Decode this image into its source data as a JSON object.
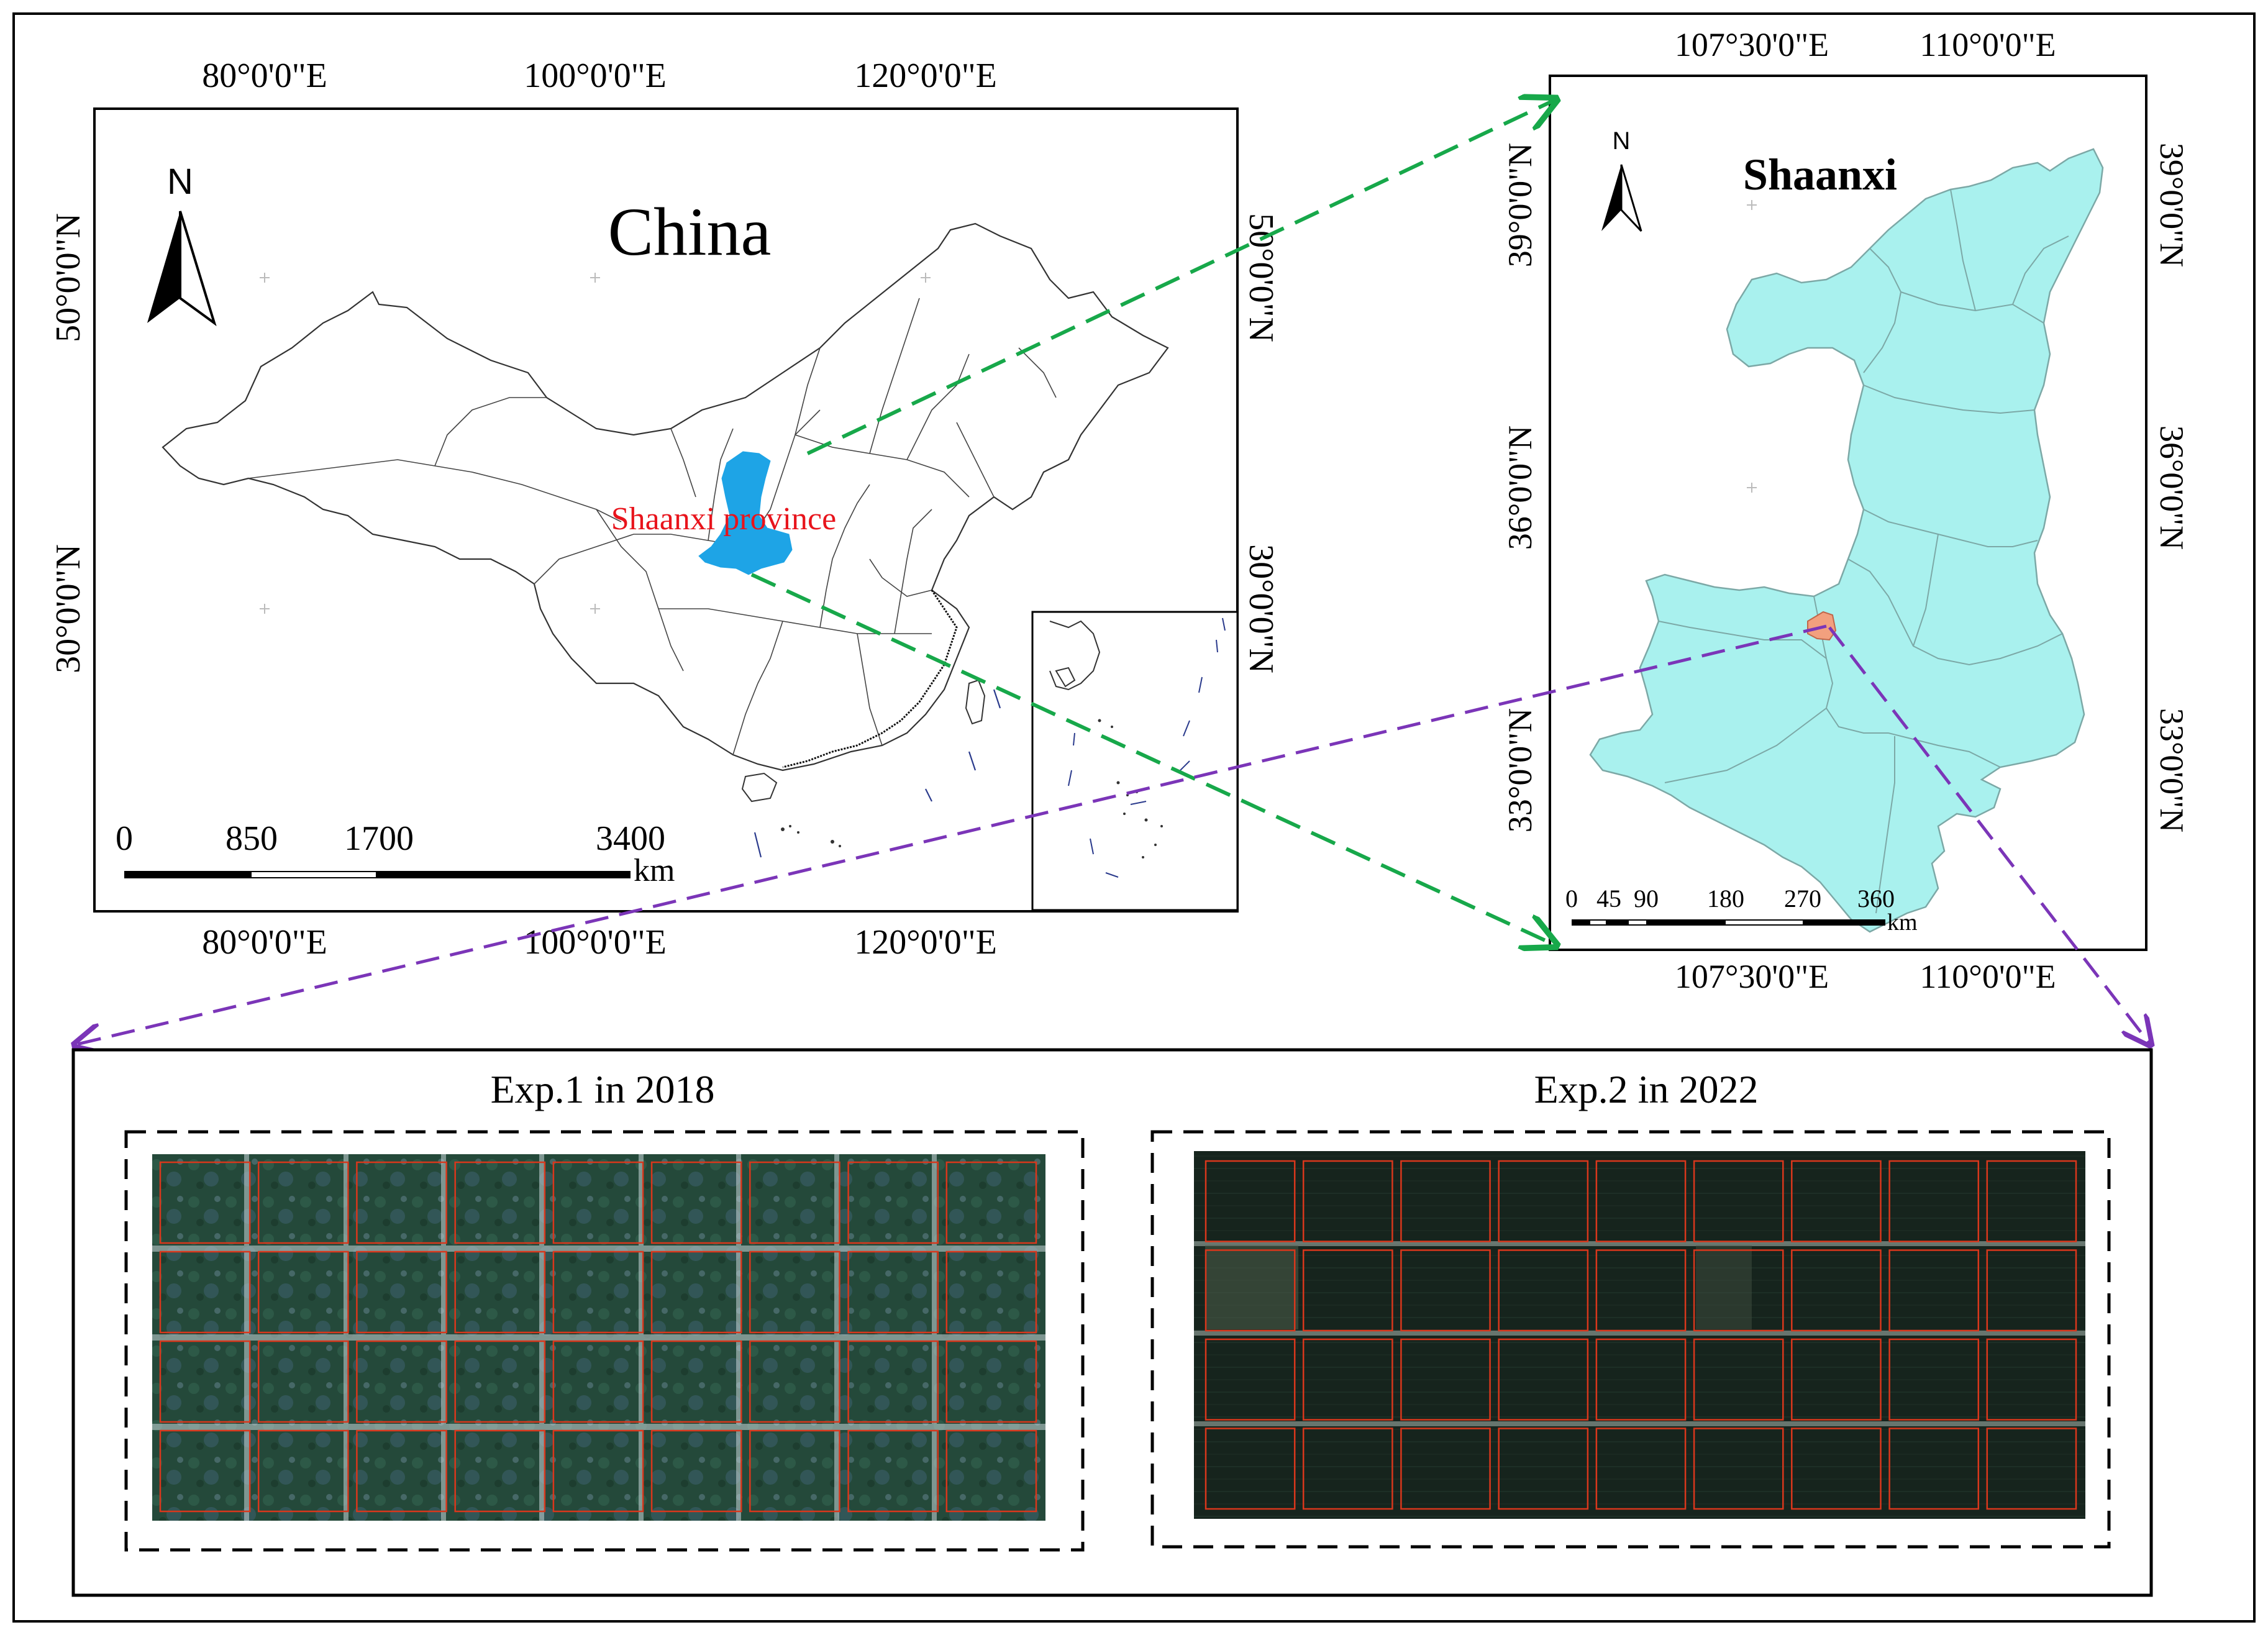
{
  "china_map": {
    "title": "China",
    "highlight_label": "Shaanxi province",
    "north_label": "N",
    "top_lon_ticks": [
      "80°0'0\"E",
      "100°0'0\"E",
      "120°0'0\"E"
    ],
    "bottom_lon_ticks": [
      "80°0'0\"E",
      "100°0'0\"E",
      "120°0'0\"E"
    ],
    "left_lat_ticks": [
      "50°0'0\"N",
      "30°0'0\"N"
    ],
    "right_lat_ticks": [
      "50°0'0\"N",
      "30°0'0\"N"
    ],
    "scale_labels": [
      "0",
      "850",
      "1700",
      "3400"
    ],
    "scale_unit": "km"
  },
  "shaanxi_map": {
    "title": "Shaanxi",
    "north_label": "N",
    "top_lon_ticks": [
      "107°30'0\"E",
      "110°0'0\"E"
    ],
    "bottom_lon_ticks": [
      "107°30'0\"E",
      "110°0'0\"E"
    ],
    "left_lat_ticks": [
      "39°0'0\"N",
      "36°0'0\"N",
      "33°0'0\"N"
    ],
    "right_lat_ticks": [
      "39°0'0\"N",
      "36°0'0\"N",
      "33°0'0\"N"
    ],
    "scale_labels": [
      "0",
      "45",
      "90",
      "180",
      "270",
      "360"
    ],
    "scale_unit": "km"
  },
  "experiments": [
    {
      "title": "Exp.1 in 2018",
      "plot_rows": 4,
      "plot_cols": 9
    },
    {
      "title": "Exp.2 in 2022",
      "plot_rows": 4,
      "plot_cols": 9
    }
  ],
  "colors": {
    "shaanxi_on_china": "#1ea4e6",
    "shaanxi_fill": "#a9f1ee",
    "study_site": "#f2a07e",
    "green_arrow": "#17a84a",
    "purple_arrow": "#7b35b8",
    "plot_outline": "#d9371c"
  }
}
